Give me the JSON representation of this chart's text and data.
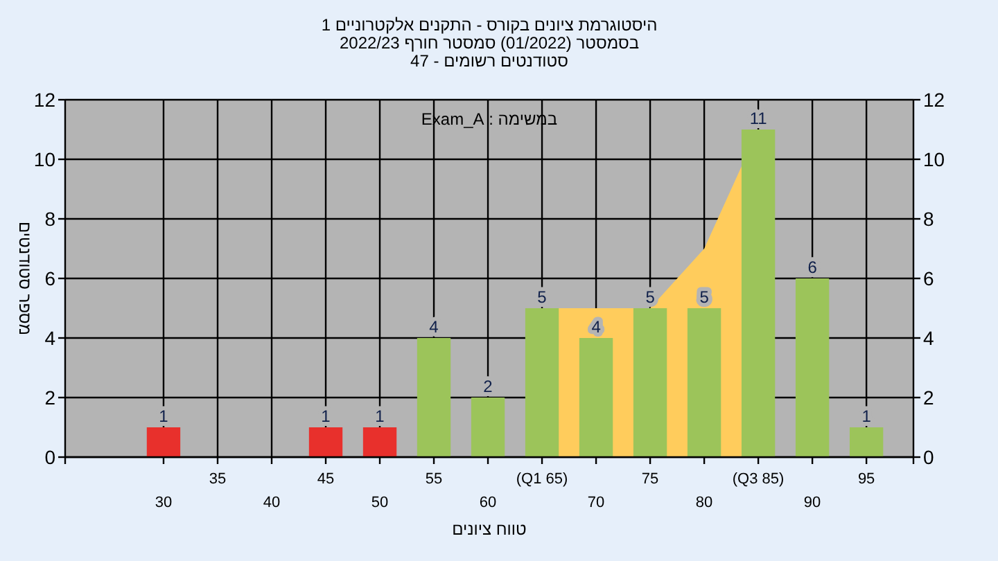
{
  "chart_data": {
    "type": "bar",
    "title": "היסטוגרמת ציונים בקורס - התקנים אלקטרוניים 1",
    "subtitle": "בסמסטר  (01/2022)  סמסטר חורף 2022/23",
    "annotations": [
      "סטודנטים רשומים - 47",
      "במשימה : Exam_A"
    ],
    "xlabel": "טווח ציונים",
    "ylabel": "מספר סטודנטים",
    "categories": [
      "30",
      "35",
      "40",
      "45",
      "50",
      "55",
      "60",
      "(Q1 65)",
      "70",
      "75",
      "80",
      "(Q3 85)",
      "90",
      "95"
    ],
    "series": [
      {
        "type": "area",
        "color": "#ffcc5c",
        "values": [
          null,
          null,
          null,
          null,
          null,
          null,
          null,
          5,
          5,
          5,
          7,
          11,
          null,
          null
        ]
      },
      {
        "colors": [
          "#e8302c",
          "#9cc45a",
          "#9cc45a",
          "#e8302c",
          "#e8302c",
          "#9cc45a",
          "#9cc45a",
          "#9cc45a",
          "#9cc45a",
          "#9cc45a",
          "#9cc45a",
          "#9cc45a",
          "#9cc45a",
          "#9cc45a"
        ],
        "values": [
          1,
          0,
          0,
          1,
          1,
          4,
          2,
          5,
          4,
          5,
          5,
          11,
          6,
          1
        ],
        "value_labels": [
          "1",
          null,
          null,
          "1",
          "1",
          "4",
          "2",
          "5",
          "4",
          "5",
          "5",
          "11",
          "6",
          "1"
        ]
      }
    ],
    "ylim": [
      0,
      12
    ],
    "yticks": [
      0,
      2,
      4,
      6,
      8,
      10,
      12
    ],
    "y2lim": [
      0,
      12
    ],
    "y2ticks": [
      0,
      2,
      4,
      6,
      8,
      10,
      12
    ],
    "grid": true
  }
}
